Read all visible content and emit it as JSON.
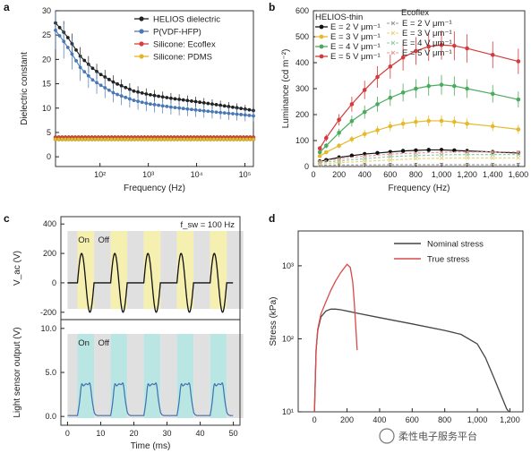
{
  "watermark": "柔性电子服务平台",
  "chart_data": [
    {
      "panel": "a",
      "type": "line",
      "xlabel": "Frequency (Hz)",
      "ylabel": "Dielectric constant",
      "xscale": "log",
      "xlim": [
        12,
        150000
      ],
      "ylim": [
        -2,
        30
      ],
      "x_ticks": [
        100,
        1000,
        10000,
        100000
      ],
      "x_tick_labels": [
        "10²",
        "10³",
        "10⁴",
        "10⁵"
      ],
      "y_ticks": [
        0,
        5,
        10,
        15,
        20,
        25,
        30
      ],
      "legend_position": "top-right",
      "series": [
        {
          "name": "HELIOS dielectric",
          "color": "#222222",
          "x": [
            12,
            20,
            40,
            70,
            100,
            200,
            500,
            1000,
            3000,
            10000,
            30000,
            100000,
            150000
          ],
          "y": [
            27.5,
            25,
            20.5,
            18.2,
            17,
            15.2,
            13.5,
            12.8,
            12,
            11.3,
            10.6,
            9.8,
            9.5
          ]
        },
        {
          "name": "P(VDF-HFP)",
          "color": "#4a78b5",
          "x": [
            12,
            20,
            40,
            70,
            100,
            200,
            500,
            1000,
            3000,
            10000,
            30000,
            100000,
            150000
          ],
          "y": [
            26,
            23,
            18.2,
            15.8,
            14.8,
            13,
            11.6,
            10.9,
            10.2,
            9.6,
            9.1,
            8.6,
            8.4
          ]
        },
        {
          "name": "Silicone: Ecoflex",
          "color": "#d64040",
          "x": [
            12,
            100,
            1000,
            10000,
            100000,
            150000
          ],
          "y": [
            4.0,
            4.0,
            4.0,
            4.0,
            4.0,
            4.0
          ]
        },
        {
          "name": "Silicone: PDMS",
          "color": "#e5b52a",
          "x": [
            12,
            100,
            1000,
            10000,
            100000,
            150000
          ],
          "y": [
            3.6,
            3.6,
            3.6,
            3.6,
            3.6,
            3.6
          ]
        }
      ]
    },
    {
      "panel": "b",
      "type": "line",
      "xlabel": "Frequency (Hz)",
      "ylabel": "Luminance (cd m⁻²)",
      "xlim": [
        0,
        1650
      ],
      "ylim": [
        0,
        600
      ],
      "x_ticks": [
        0,
        200,
        400,
        600,
        800,
        1000,
        1200,
        1400,
        1600
      ],
      "x_tick_labels": [
        "0",
        "200",
        "400",
        "600",
        "800",
        "1,000",
        "1,200",
        "1,400",
        "1,600"
      ],
      "y_ticks": [
        0,
        100,
        200,
        300,
        400,
        500,
        600
      ],
      "legend_groups": [
        "HELIOS-thin",
        "Ecoflex"
      ],
      "series": [
        {
          "name": "E = 2 V μm⁻¹",
          "group": "HELIOS-thin",
          "color": "#111111",
          "x": [
            50,
            100,
            200,
            300,
            400,
            500,
            600,
            700,
            800,
            900,
            1000,
            1100,
            1200,
            1400,
            1600
          ],
          "y": [
            20,
            25,
            35,
            42,
            48,
            52,
            56,
            60,
            62,
            64,
            64,
            62,
            60,
            56,
            52
          ]
        },
        {
          "name": "E = 3 V μm⁻¹",
          "group": "HELIOS-thin",
          "color": "#e6b92a",
          "x": [
            50,
            100,
            200,
            300,
            400,
            500,
            600,
            700,
            800,
            900,
            1000,
            1100,
            1200,
            1400,
            1600
          ],
          "y": [
            40,
            55,
            80,
            105,
            125,
            140,
            155,
            165,
            172,
            176,
            176,
            172,
            165,
            155,
            143
          ]
        },
        {
          "name": "E = 4 V μm⁻¹",
          "group": "HELIOS-thin",
          "color": "#4bab5c",
          "x": [
            50,
            100,
            200,
            300,
            400,
            500,
            600,
            700,
            800,
            900,
            1000,
            1100,
            1200,
            1400,
            1600
          ],
          "y": [
            55,
            80,
            130,
            175,
            210,
            240,
            265,
            285,
            300,
            310,
            315,
            310,
            300,
            280,
            258
          ]
        },
        {
          "name": "E = 5 V μm⁻¹",
          "group": "HELIOS-thin",
          "color": "#d63a3a",
          "x": [
            50,
            100,
            200,
            300,
            400,
            500,
            600,
            700,
            800,
            900,
            1000,
            1100,
            1200,
            1400,
            1600
          ],
          "y": [
            70,
            110,
            180,
            240,
            295,
            345,
            385,
            420,
            445,
            462,
            468,
            465,
            455,
            430,
            405
          ]
        },
        {
          "name": "E = 2 V μm⁻¹",
          "group": "Ecoflex",
          "color": "#999999",
          "dashed": true,
          "x": [
            50,
            200,
            400,
            600,
            800,
            1000,
            1200,
            1400,
            1600
          ],
          "y": [
            5,
            6,
            6,
            7,
            7,
            7,
            7,
            7,
            7
          ]
        },
        {
          "name": "E = 3 V μm⁻¹",
          "group": "Ecoflex",
          "color": "#efd27a",
          "dashed": true,
          "x": [
            50,
            200,
            400,
            600,
            800,
            1000,
            1200,
            1400,
            1600
          ],
          "y": [
            10,
            15,
            20,
            25,
            30,
            32,
            33,
            33,
            33
          ]
        },
        {
          "name": "E = 4 V μm⁻¹",
          "group": "Ecoflex",
          "color": "#93cda0",
          "dashed": true,
          "x": [
            50,
            200,
            400,
            600,
            800,
            1000,
            1200,
            1400,
            1600
          ],
          "y": [
            15,
            22,
            30,
            38,
            42,
            45,
            46,
            46,
            46
          ]
        },
        {
          "name": "E = 5 V μm⁻¹",
          "group": "Ecoflex",
          "color": "#e79a9a",
          "dashed": true,
          "x": [
            50,
            200,
            400,
            600,
            800,
            1000,
            1200,
            1400,
            1600
          ],
          "y": [
            20,
            30,
            40,
            48,
            52,
            55,
            56,
            56,
            56
          ]
        }
      ]
    },
    {
      "panel": "c",
      "type": "line",
      "annotation": "f_sw = 100 Hz",
      "xlabel": "Time (ms)",
      "xlim": [
        -2,
        52
      ],
      "x_ticks": [
        0,
        10,
        20,
        30,
        40,
        50
      ],
      "on_label": "On",
      "off_label": "Off",
      "top": {
        "ylabel": "V_ac (V)",
        "ylim": [
          -250,
          450
        ],
        "y_ticks": [
          -200,
          0,
          200,
          400
        ],
        "color": "#111111",
        "description_series": "5 sinusoidal bursts, amplitude 200 V, each 5 ms, repeating every 10 ms"
      },
      "bottom": {
        "ylabel": "Light sensor output (V)",
        "ylim": [
          -1,
          11
        ],
        "y_ticks": [
          0.0,
          5.0,
          10.0
        ],
        "y_tick_labels": [
          "0.0",
          "5.0",
          "10.0"
        ],
        "color": "#3e6fb0"
      },
      "on_windows_ms": [
        [
          3,
          8
        ],
        [
          13,
          18
        ],
        [
          23,
          28
        ],
        [
          33,
          38
        ],
        [
          43,
          48
        ]
      ]
    },
    {
      "panel": "d",
      "type": "line",
      "xlabel": "",
      "ylabel": "Stress (kPa)",
      "yscale": "log",
      "xlim": [
        -100,
        1280
      ],
      "ylim": [
        10,
        3000
      ],
      "x_ticks": [
        0,
        200,
        400,
        600,
        800,
        1000,
        1200
      ],
      "x_tick_labels": [
        "0",
        "200",
        "400",
        "600",
        "800",
        "1,000",
        "1,200"
      ],
      "y_ticks": [
        10,
        100,
        1000
      ],
      "y_tick_labels": [
        "10¹",
        "10²",
        "10³"
      ],
      "legend_position": "top-right",
      "series": [
        {
          "name": "Nominal stress",
          "color": "#444444",
          "x": [
            0,
            10,
            20,
            40,
            70,
            100,
            130,
            160,
            200,
            260,
            400,
            600,
            800,
            900,
            1000,
            1050,
            1100,
            1150,
            1180,
            1195
          ],
          "y": [
            10,
            70,
            130,
            200,
            240,
            255,
            255,
            250,
            240,
            225,
            195,
            160,
            130,
            115,
            85,
            55,
            30,
            16,
            11,
            10
          ]
        },
        {
          "name": "True stress",
          "color": "#d84a4a",
          "x": [
            0,
            10,
            20,
            40,
            70,
            100,
            130,
            160,
            200,
            220,
            235,
            245,
            255,
            262
          ],
          "y": [
            10,
            70,
            135,
            220,
            320,
            460,
            620,
            800,
            1050,
            950,
            600,
            300,
            130,
            70
          ]
        }
      ]
    }
  ]
}
